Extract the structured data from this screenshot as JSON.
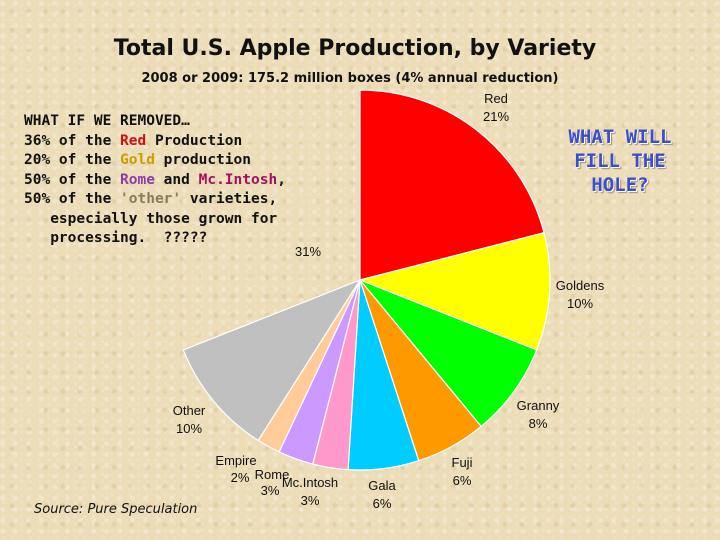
{
  "chart_data": {
    "type": "pie",
    "title": "Total U.S. Apple Production, by Variety",
    "subtitle": "2008 or 2009:  175.2 million boxes (4% annual reduction)",
    "start_angle_deg": 0,
    "slices": [
      {
        "label": "Red",
        "pct_label": "21%",
        "value": 21,
        "color": "#ff0000"
      },
      {
        "label": "Goldens",
        "pct_label": "10%",
        "value": 10,
        "color": "#ffff00"
      },
      {
        "label": "Granny",
        "pct_label": "8%",
        "value": 8,
        "color": "#00ff00"
      },
      {
        "label": "Fuji",
        "pct_label": "6%",
        "value": 6,
        "color": "#ff9900"
      },
      {
        "label": "Gala",
        "pct_label": "6%",
        "value": 6,
        "color": "#00ccff"
      },
      {
        "label": "Mc.Intosh",
        "pct_label": "3%",
        "value": 3,
        "color": "#ff99cc"
      },
      {
        "label": "Rome",
        "pct_label": "3%",
        "value": 3,
        "color": "#cc99ff"
      },
      {
        "label": "Empire",
        "pct_label": "2%",
        "value": 2,
        "color": "#ffcc99"
      },
      {
        "label": "Other",
        "pct_label": "10%",
        "value": 10,
        "color": "#c0c0c0"
      },
      {
        "label": "",
        "pct_label": "31%",
        "value": 31,
        "color": "none"
      }
    ]
  },
  "notes": {
    "line1": "WHAT IF WE REMOVED…",
    "l2_pre": "36% of the ",
    "l2_red": "Red",
    "l2_post": " Production",
    "l3_pre": "20% of the ",
    "l3_gold": "Gold",
    "l3_post": " production",
    "l4_pre": "50% of the ",
    "l4_rome": "Rome",
    "l4_mid": " and ",
    "l4_mc": "Mc.Intosh",
    "l4_post": ",",
    "l5_pre": "50% of the ",
    "l5_other": "'other'",
    "l5_post": " varieties,",
    "line6": "   especially those grown for",
    "line7": "   processing.  ?????"
  },
  "callout": {
    "line1": "WHAT WILL",
    "line2": "FILL THE",
    "line3": "HOLE?"
  },
  "source": "Source: Pure Speculation"
}
